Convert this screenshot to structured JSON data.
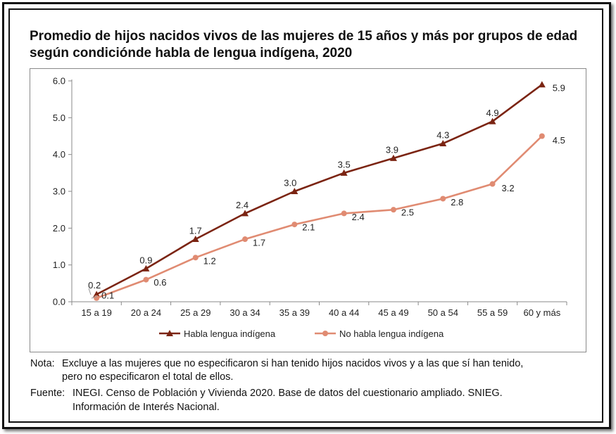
{
  "chart_data": {
    "type": "line",
    "title": "Promedio de hijos nacidos vivos de las mujeres de 15 años y más por grupos de edad según condiciónde habla de lengua indígena, 2020",
    "categories": [
      "15 a 19",
      "20 a 24",
      "25 a 29",
      "30 a 34",
      "35 a 39",
      "40 a 44",
      "45 a 49",
      "50 a 54",
      "55 a 59",
      "60 y más"
    ],
    "ylim": [
      0,
      6
    ],
    "yticks": [
      "0.0",
      "1.0",
      "2.0",
      "3.0",
      "4.0",
      "5.0",
      "6.0"
    ],
    "grid": false,
    "legend": "bottom",
    "series": [
      {
        "name": "Habla lengua indígena",
        "color": "#7b2412",
        "marker": "triangle",
        "values": [
          0.2,
          0.9,
          1.7,
          2.4,
          3.0,
          3.5,
          3.9,
          4.3,
          4.9,
          5.9
        ],
        "labels": [
          "0.2",
          "0.9",
          "1.7",
          "2.4",
          "3.0",
          "3.5",
          "3.9",
          "4.3",
          "4.9",
          "5.9"
        ]
      },
      {
        "name": "No habla lengua indígena",
        "color": "#e08b72",
        "marker": "circle",
        "values": [
          0.1,
          0.6,
          1.2,
          1.7,
          2.1,
          2.4,
          2.5,
          2.8,
          3.2,
          4.5
        ],
        "labels": [
          "0.1",
          "0.6",
          "1.2",
          "1.7",
          "2.1",
          "2.4",
          "2.5",
          "2.8",
          "3.2",
          "4.5"
        ]
      }
    ]
  },
  "notes": {
    "nota_label": "Nota:",
    "nota_line1": "Excluye a las mujeres que no especificaron si han tenido hijos nacidos vivos y a las que sí han tenido,",
    "nota_line2": "pero no especificaron el total de ellos.",
    "fuente_label": "Fuente:",
    "fuente_line1": "INEGI. Censo de Población y Vivienda 2020. Base de datos del cuestionario ampliado. SNIEG.",
    "fuente_line2": "Información de Interés Nacional."
  }
}
